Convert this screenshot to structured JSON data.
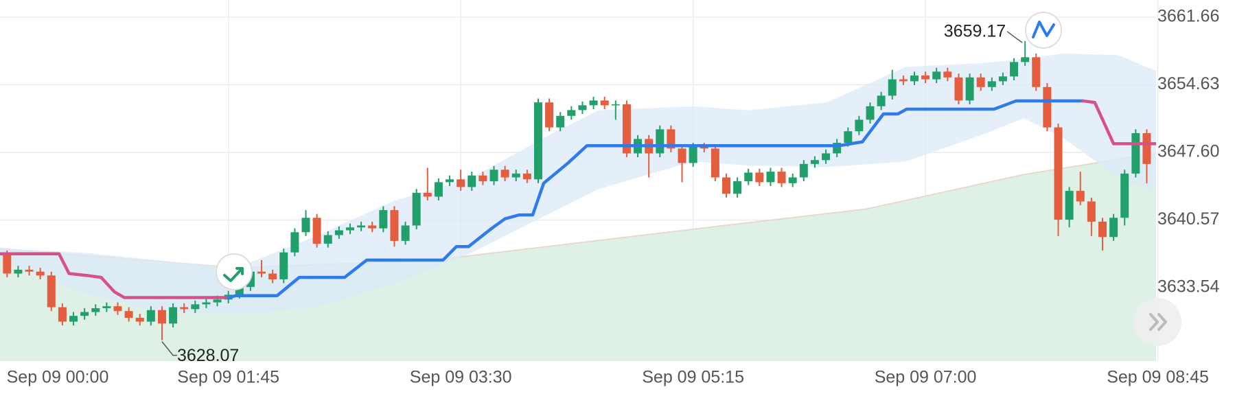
{
  "chart_data": {
    "type": "candlestick",
    "open": [
      3637.2,
      3637.0,
      3635.0,
      3635.4,
      3635.2,
      3634.8,
      3631.5,
      3630.0,
      3630.6,
      3631.0,
      3631.4,
      3631.6,
      3631.1,
      3630.4,
      3630.0,
      3631.2,
      3629.8,
      3631.5,
      3631.3,
      3631.8,
      3632.0,
      3632.3,
      3632.8,
      3633.6,
      3635.2,
      3635.0,
      3634.4,
      3637.2,
      3639.3,
      3640.8,
      3638.1,
      3639.0,
      3639.5,
      3639.8,
      3640.0,
      3639.7,
      3641.6,
      3638.4,
      3640.0,
      3643.4,
      3643.0,
      3644.5,
      3644.8,
      3644.0,
      3645.2,
      3644.6,
      3645.8,
      3645.0,
      3645.4,
      3644.8,
      3652.8,
      3650.2,
      3651.4,
      3652.0,
      3652.5,
      3653.0,
      3652.5,
      3652.6,
      3647.5,
      3649.0,
      3647.5,
      3650.0,
      3648.0,
      3646.5,
      3648.2,
      3648.0,
      3645.0,
      3643.3,
      3644.6,
      3645.5,
      3644.5,
      3645.6,
      3644.4,
      3645.0,
      3646.4,
      3646.8,
      3647.5,
      3648.6,
      3649.8,
      3651.0,
      3652.4,
      3653.5,
      3655.2,
      3655.0,
      3655.6,
      3655.2,
      3656.0,
      3655.4,
      3653.0,
      3655.4,
      3654.4,
      3655.0,
      3655.5,
      3657.0,
      3657.5,
      3654.4,
      3650.2,
      3640.6,
      3643.6,
      3642.5,
      3640.4,
      3638.8,
      3640.8,
      3645.4,
      3649.6
    ],
    "high": [
      3637.6,
      3637.4,
      3635.8,
      3635.8,
      3635.6,
      3635.2,
      3631.9,
      3631.0,
      3631.4,
      3631.8,
      3632.0,
      3632.0,
      3631.5,
      3630.8,
      3631.6,
      3631.6,
      3631.9,
      3631.9,
      3632.2,
      3632.4,
      3632.7,
      3633.2,
      3634.0,
      3635.6,
      3636.4,
      3635.4,
      3637.6,
      3639.7,
      3641.6,
      3641.2,
      3639.4,
      3639.9,
      3640.2,
      3640.4,
      3640.4,
      3642.0,
      3642.0,
      3640.4,
      3643.8,
      3646.0,
      3644.9,
      3645.2,
      3645.8,
      3645.6,
      3645.6,
      3646.2,
      3646.2,
      3645.8,
      3645.8,
      3653.2,
      3653.2,
      3651.8,
      3652.4,
      3652.9,
      3653.4,
      3653.4,
      3653.0,
      3653.0,
      3649.4,
      3649.4,
      3650.4,
      3650.4,
      3648.4,
      3648.6,
      3648.6,
      3648.4,
      3645.4,
      3645.0,
      3645.9,
      3645.9,
      3646.0,
      3646.0,
      3645.4,
      3646.8,
      3647.2,
      3647.9,
      3649.0,
      3650.2,
      3651.4,
      3652.8,
      3653.9,
      3656.2,
      3655.6,
      3656.0,
      3656.0,
      3656.4,
      3656.4,
      3655.8,
      3655.8,
      3655.8,
      3655.4,
      3655.9,
      3657.4,
      3659.17,
      3657.9,
      3654.8,
      3650.6,
      3644.0,
      3645.6,
      3642.9,
      3640.8,
      3641.2,
      3645.8,
      3650.0,
      3650.0
    ],
    "low": [
      3636.6,
      3634.6,
      3634.6,
      3634.8,
      3634.4,
      3631.1,
      3629.6,
      3629.6,
      3630.2,
      3630.6,
      3631.0,
      3630.7,
      3630.0,
      3629.6,
      3629.6,
      3628.07,
      3629.4,
      3630.9,
      3630.9,
      3631.4,
      3631.6,
      3631.9,
      3632.4,
      3633.2,
      3634.6,
      3634.0,
      3634.0,
      3636.8,
      3638.9,
      3637.7,
      3637.7,
      3638.6,
      3639.1,
      3639.4,
      3639.3,
      3639.3,
      3637.8,
      3638.0,
      3639.6,
      3642.6,
      3642.6,
      3644.1,
      3643.6,
      3643.6,
      3644.2,
      3644.2,
      3644.6,
      3644.6,
      3644.4,
      3644.4,
      3649.8,
      3649.8,
      3651.0,
      3651.6,
      3652.1,
      3652.1,
      3651.0,
      3647.1,
      3647.1,
      3645.0,
      3647.1,
      3647.6,
      3644.5,
      3646.1,
      3647.6,
      3644.6,
      3642.9,
      3642.9,
      3644.2,
      3644.1,
      3644.1,
      3644.0,
      3644.0,
      3644.6,
      3646.0,
      3646.4,
      3647.1,
      3648.2,
      3649.4,
      3650.6,
      3652.0,
      3653.1,
      3654.6,
      3654.6,
      3654.8,
      3654.8,
      3655.0,
      3652.6,
      3652.6,
      3654.0,
      3654.0,
      3654.6,
      3655.1,
      3656.6,
      3654.0,
      3649.8,
      3638.9,
      3639.8,
      3642.1,
      3638.9,
      3637.4,
      3638.4,
      3640.0,
      3645.0,
      3644.4
    ],
    "close": [
      3637.0,
      3635.0,
      3635.4,
      3635.2,
      3634.8,
      3631.5,
      3630.0,
      3630.6,
      3631.0,
      3631.4,
      3631.6,
      3631.1,
      3630.4,
      3630.0,
      3631.2,
      3629.8,
      3631.5,
      3631.3,
      3631.8,
      3632.0,
      3632.3,
      3632.8,
      3633.6,
      3635.2,
      3635.0,
      3634.4,
      3637.2,
      3639.3,
      3640.8,
      3638.1,
      3639.0,
      3639.5,
      3639.8,
      3640.0,
      3639.7,
      3641.6,
      3638.4,
      3640.0,
      3643.4,
      3643.0,
      3644.5,
      3644.8,
      3644.0,
      3645.2,
      3644.6,
      3645.8,
      3645.0,
      3645.4,
      3644.8,
      3652.8,
      3650.2,
      3651.4,
      3652.0,
      3652.5,
      3653.0,
      3652.5,
      3652.6,
      3647.5,
      3649.0,
      3647.5,
      3650.0,
      3648.0,
      3646.5,
      3648.2,
      3648.0,
      3645.0,
      3643.3,
      3644.6,
      3645.5,
      3644.5,
      3645.6,
      3644.4,
      3645.0,
      3646.4,
      3646.8,
      3647.5,
      3648.6,
      3649.8,
      3651.0,
      3652.4,
      3653.5,
      3655.2,
      3655.0,
      3655.6,
      3655.2,
      3656.0,
      3655.4,
      3653.0,
      3655.4,
      3654.4,
      3655.0,
      3655.5,
      3657.0,
      3657.5,
      3654.4,
      3650.2,
      3640.6,
      3643.6,
      3642.5,
      3640.4,
      3638.8,
      3640.8,
      3645.4,
      3649.6,
      3646.4
    ],
    "up_color": "#22a06b",
    "down_color": "#e35d3e",
    "ylim": [
      3625.9,
      3663.45
    ],
    "yticks": [
      3661.66,
      3654.63,
      {
        "value": 3647.6,
        "label": "3647.60"
      },
      3640.57,
      3633.54
    ],
    "xlim": [
      0.36,
      104.84
    ],
    "xticks": [
      {
        "value": 0,
        "label": "Sep 09 00:00"
      },
      {
        "value": 21,
        "label": "Sep 09 01:45"
      },
      {
        "value": 42,
        "label": "Sep 09 03:30"
      },
      {
        "value": 63,
        "label": "Sep 09 05:15"
      },
      {
        "value": 84,
        "label": "Sep 09 07:00"
      },
      {
        "value": 105,
        "label": "Sep 09 08:45"
      }
    ],
    "grid": true,
    "ma": {
      "color": "#e6d9cf",
      "fill": "#dff1e6",
      "x": [
        0.36,
        21.7,
        39.5,
        64.4,
        78.6,
        92.9,
        104.84
      ],
      "values": [
        3637.6,
        3635.6,
        3636.4,
        3639.8,
        3641.7,
        3645.3,
        3647.5
      ]
    },
    "band": {
      "color": "#dce9f8",
      "x": [
        0.36,
        7.47,
        14.59,
        21.71,
        28.83,
        35.94,
        43.06,
        50.18,
        54.45,
        62.99,
        67.97,
        75.09,
        82.21,
        89.32,
        92.88,
        96.44,
        101.42,
        104.84
      ],
      "upper": [
        3637.62,
        3637.21,
        3636.39,
        3635.57,
        3638.85,
        3642.55,
        3645.01,
        3649.52,
        3651.98,
        3652.39,
        3651.98,
        3652.8,
        3656.49,
        3656.9,
        3657.31,
        3657.89,
        3657.72,
        3656.08
      ],
      "lower": [
        3636.39,
        3633.11,
        3631.06,
        3630.81,
        3631.47,
        3633.93,
        3637.21,
        3641.32,
        3643.78,
        3646.65,
        3646.24,
        3646.07,
        3646.65,
        3649.52,
        3651.16,
        3649.11,
        3645.01,
        3643.37
      ]
    },
    "trend": [
      {
        "color": "#d6508a",
        "x": [
          0.36,
          5.7,
          6.6,
          8.2,
          9.5,
          10.7,
          11.6,
          21.0
        ],
        "values": [
          3637.05,
          3637.05,
          3635.0,
          3634.8,
          3634.6,
          3633.1,
          3632.5,
          3632.5
        ]
      },
      {
        "color": "#2f7bec",
        "x": [
          21.0,
          21.7,
          25.4,
          27.4,
          31.5,
          33.5,
          40.4,
          41.6,
          42.7,
          44.8,
          46.0,
          47.3,
          48.5,
          49.5,
          51.7,
          53.4,
          76.2,
          78.3,
          80.2,
          81.5,
          82.3,
          90.2,
          92.2,
          98.2
        ],
        "values": [
          3632.5,
          3632.7,
          3632.7,
          3634.6,
          3634.6,
          3636.4,
          3636.4,
          3637.8,
          3637.8,
          3639.7,
          3640.7,
          3641.1,
          3641.1,
          3644.4,
          3646.5,
          3648.3,
          3648.3,
          3648.7,
          3651.6,
          3651.6,
          3652.1,
          3652.1,
          3652.96,
          3652.96
        ]
      },
      {
        "color": "#d6508a",
        "x": [
          98.2,
          99.3,
          101.0,
          104.84
        ],
        "values": [
          3652.96,
          3652.8,
          3648.5,
          3648.5
        ]
      }
    ]
  }
}
